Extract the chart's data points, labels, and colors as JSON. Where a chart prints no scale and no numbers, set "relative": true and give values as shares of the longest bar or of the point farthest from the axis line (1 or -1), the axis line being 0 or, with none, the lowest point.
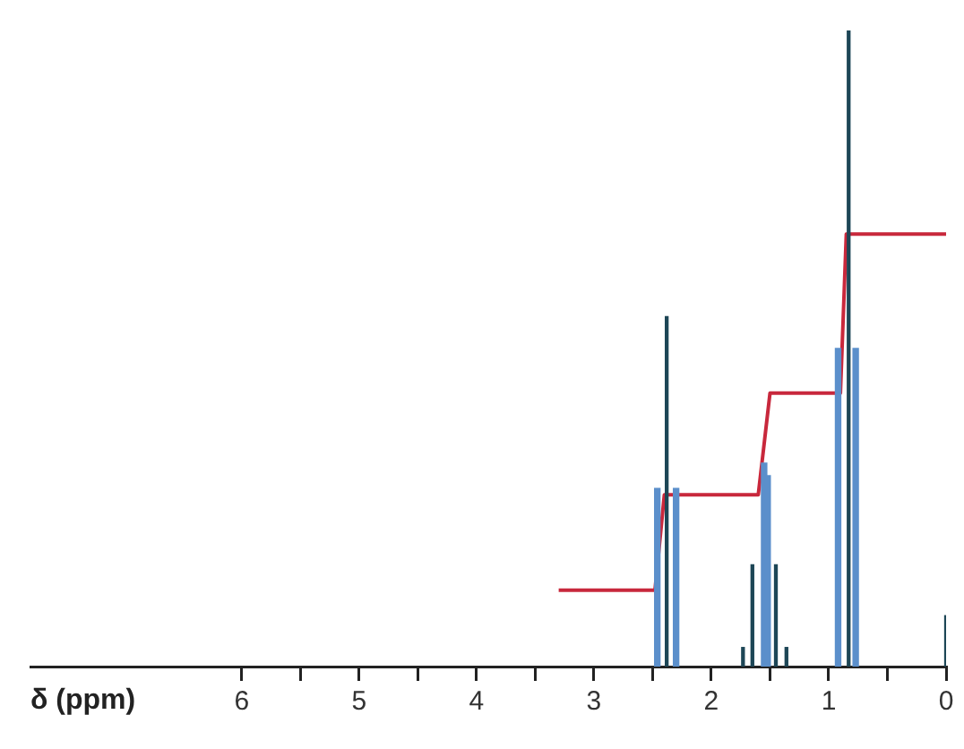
{
  "chart_data": {
    "type": "bar",
    "relative": true,
    "xlabel": "δ (ppm)",
    "xlim": [
      7.8,
      0
    ],
    "xticks": [
      6,
      {
        "value": 5.5,
        "label": null
      },
      5,
      {
        "value": 4.5,
        "label": null
      },
      4,
      {
        "value": 3.5,
        "label": null
      },
      3,
      {
        "value": 2.5,
        "label": null
      },
      2,
      {
        "value": 1.5,
        "label": null
      },
      1,
      {
        "value": 0.5,
        "label": null
      },
      0
    ],
    "series": [
      {
        "color": "#5b8fcb",
        "x": [
          2.46,
          2.3,
          1.55,
          1.52,
          0.92,
          0.77
        ],
        "values": [
          0.28,
          0.28,
          0.32,
          0.3,
          0.5,
          0.5
        ]
      },
      {
        "color": "#1d4656",
        "x": [
          2.38,
          1.73,
          1.65,
          1.45,
          1.36,
          0.83,
          0
        ],
        "values": [
          0.55,
          0.03,
          0.16,
          0.16,
          0.03,
          1,
          0.08
        ]
      },
      {
        "type": "line",
        "color": "#c8283c",
        "x": [
          3.3,
          2.48,
          2.4,
          1.6,
          1.5,
          0.9,
          0.85,
          0
        ],
        "values": [
          0.12,
          0.12,
          0.27,
          0.27,
          0.43,
          0.43,
          0.68,
          0.68
        ]
      }
    ],
    "grid": false,
    "tick_labels": "x",
    "legend": false
  }
}
